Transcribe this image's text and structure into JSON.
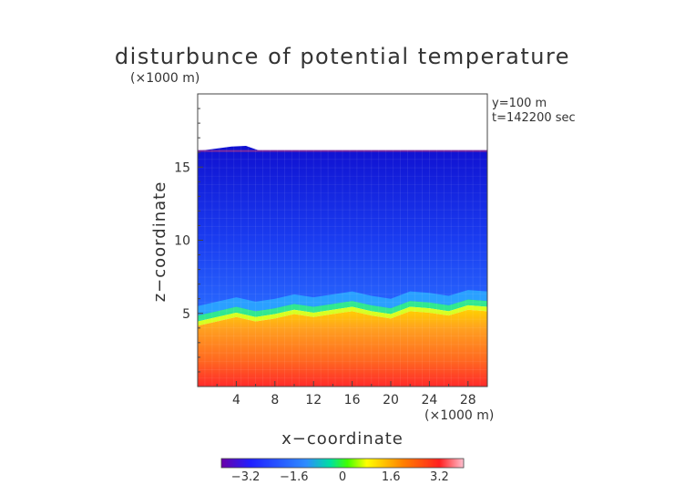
{
  "chart_data": {
    "type": "heatmap",
    "title": "disturbunce of potential temperature",
    "x_unit": "(×1000 m)",
    "z_unit": "(×1000 m)",
    "xlabel": "x−coordinate",
    "ylabel": "z−coordinate",
    "annotations": [
      "y=100 m",
      "t=142200 sec"
    ],
    "xlim": [
      0,
      30
    ],
    "ylim": [
      0,
      20
    ],
    "x_ticks": [
      4,
      8,
      12,
      16,
      20,
      24,
      28
    ],
    "x_tick_labels": [
      "4",
      "8",
      "12",
      "16",
      "20",
      "24",
      "28"
    ],
    "y_ticks": [
      5,
      10,
      15
    ],
    "y_tick_labels": [
      "5",
      "10",
      "15"
    ],
    "colorbar": {
      "range": [
        -4,
        4
      ],
      "ticks": [
        -3.2,
        -1.6,
        0,
        1.6,
        3.2
      ],
      "tick_labels": [
        "−3.2",
        "−1.6",
        "0",
        "1.6",
        "3.2"
      ]
    },
    "field": {
      "top_boundary_z": 16.1,
      "interface_profile": [
        {
          "x": 0,
          "z": 4.6
        },
        {
          "x": 2,
          "z": 4.9
        },
        {
          "x": 4,
          "z": 5.2
        },
        {
          "x": 6,
          "z": 4.9
        },
        {
          "x": 8,
          "z": 5.1
        },
        {
          "x": 10,
          "z": 5.4
        },
        {
          "x": 12,
          "z": 5.2
        },
        {
          "x": 14,
          "z": 5.4
        },
        {
          "x": 16,
          "z": 5.6
        },
        {
          "x": 18,
          "z": 5.3
        },
        {
          "x": 20,
          "z": 5.1
        },
        {
          "x": 22,
          "z": 5.6
        },
        {
          "x": 24,
          "z": 5.5
        },
        {
          "x": 26,
          "z": 5.3
        },
        {
          "x": 28,
          "z": 5.7
        },
        {
          "x": 30,
          "z": 5.6
        }
      ],
      "value_above_interface": -3.6,
      "value_at_bottom": 3.8
    }
  }
}
